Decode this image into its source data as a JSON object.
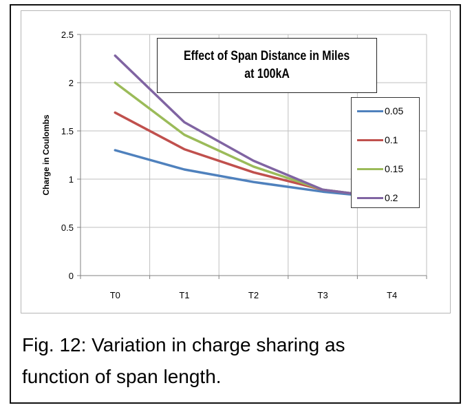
{
  "caption": {
    "line1": "Fig. 12: Variation in charge sharing as",
    "line2": "function of span length."
  },
  "chart_data": {
    "type": "line",
    "title_lines": [
      "Effect of Span Distance in Miles",
      "at 100kA"
    ],
    "xlabel": "",
    "ylabel": "Charge in Coulombs",
    "categories": [
      "T0",
      "T1",
      "T2",
      "T3",
      "T4"
    ],
    "ylim": [
      0,
      2.5
    ],
    "yticks": [
      "0",
      "0.5",
      "1",
      "1.5",
      "2",
      "2.5"
    ],
    "grid": true,
    "legend_position": "right",
    "series": [
      {
        "name": "0.05",
        "color": "#4f81bd",
        "values": [
          1.3,
          1.1,
          0.97,
          0.87,
          0.8
        ]
      },
      {
        "name": "0.1",
        "color": "#c0504d",
        "values": [
          1.69,
          1.31,
          1.07,
          0.89,
          0.8
        ]
      },
      {
        "name": "0.15",
        "color": "#9bbb59",
        "values": [
          2.0,
          1.46,
          1.13,
          0.89,
          0.8
        ]
      },
      {
        "name": "0.2",
        "color": "#8064a2",
        "values": [
          2.28,
          1.59,
          1.19,
          0.89,
          0.8
        ]
      }
    ]
  }
}
